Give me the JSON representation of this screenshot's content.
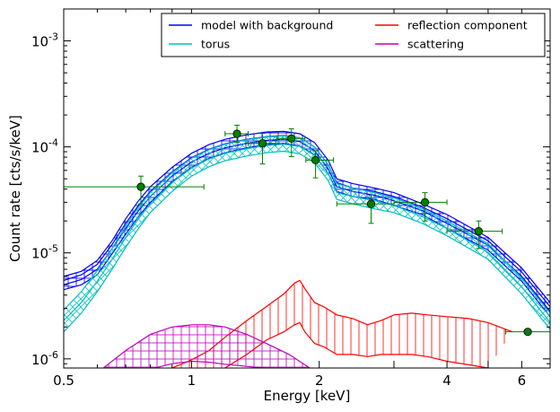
{
  "chart_data": {
    "type": "line",
    "title": "",
    "xlabel": "Energy [keV]",
    "ylabel": "Count rate [cts/s/keV]",
    "xscale": "log",
    "yscale": "log",
    "xlim": [
      0.5,
      7.0
    ],
    "ylim": [
      8.2e-07,
      0.002
    ],
    "xticks": [
      {
        "value": 0.5,
        "label": "0.5"
      },
      {
        "value": 1,
        "label": "1"
      },
      {
        "value": 2,
        "label": "2"
      },
      {
        "value": 4,
        "label": "4"
      },
      {
        "value": 6,
        "label": "6"
      }
    ],
    "yticks": [
      {
        "value": 1e-06,
        "mantissa": "10",
        "exponent": "-6"
      },
      {
        "value": 1e-05,
        "mantissa": "10",
        "exponent": "-5"
      },
      {
        "value": 0.0001,
        "mantissa": "10",
        "exponent": "-4"
      },
      {
        "value": 0.001,
        "mantissa": "10",
        "exponent": "-3"
      }
    ],
    "grid": false,
    "legend": {
      "placement": "top-right",
      "columns": 2,
      "entries": [
        {
          "name": "model with background",
          "color": "#0000ff"
        },
        {
          "name": "torus",
          "color": "#00bfbf"
        },
        {
          "name": "reflection component",
          "color": "#ff0000"
        },
        {
          "name": "scattering",
          "color": "#bf00bf"
        }
      ]
    },
    "data_points": {
      "color": "#008000",
      "points": [
        {
          "x": 0.76,
          "y": 4.2e-05,
          "xerr": [
            0.26,
            0.31
          ],
          "yerr": [
            1.3e-05,
            1.1e-05
          ]
        },
        {
          "x": 1.28,
          "y": 0.000133,
          "xerr": [
            0.08,
            0.08
          ],
          "yerr": [
            2.2e-05,
            2.7e-05
          ]
        },
        {
          "x": 1.47,
          "y": 0.000108,
          "xerr": [
            0.11,
            0.11
          ],
          "yerr": [
            3.9e-05,
            2.6e-05
          ]
        },
        {
          "x": 1.72,
          "y": 0.00012,
          "xerr": [
            0.13,
            0.13
          ],
          "yerr": [
            3.9e-05,
            2.8e-05
          ]
        },
        {
          "x": 1.96,
          "y": 7.5e-05,
          "xerr": [
            0.1,
            0.2
          ],
          "yerr": [
            2.4e-05,
            1.7e-05
          ]
        },
        {
          "x": 2.65,
          "y": 2.9e-05,
          "xerr": [
            0.45,
            0.35
          ],
          "yerr": [
            1e-05,
            6e-06
          ]
        },
        {
          "x": 3.55,
          "y": 3e-05,
          "xerr": [
            0.55,
            0.45
          ],
          "yerr": [
            1e-05,
            7e-06
          ]
        },
        {
          "x": 4.75,
          "y": 1.6e-05,
          "xerr": [
            0.75,
            0.65
          ],
          "yerr": [
            5e-06,
            4e-06
          ]
        },
        {
          "x": 6.2,
          "y": 1.8e-06,
          "xerr": [
            0.7,
            0.8
          ],
          "yerr": [
            0.0,
            0.0
          ]
        }
      ]
    },
    "series": [
      {
        "id": "model",
        "name": "model with background",
        "color": "#0000ff",
        "hatch": "cross",
        "lines": [
          {
            "x": [
              0.5,
              0.55,
              0.6,
              0.65,
              0.7,
              0.75,
              0.8,
              0.9,
              1.0,
              1.1,
              1.2,
              1.35,
              1.5,
              1.65,
              1.8,
              1.95,
              2.1,
              2.2,
              2.4,
              2.7,
              3.0,
              3.5,
              4.0,
              5.0,
              6.0,
              7.0
            ],
            "y": [
              6e-06,
              6.7e-06,
              8.5e-06,
              1.3e-05,
              2.1e-05,
              3.1e-05,
              4.2e-05,
              6.4e-05,
              8.7e-05,
              0.000105,
              0.000118,
              0.00013,
              0.000138,
              0.00014,
              0.000133,
              0.00011,
              7.5e-05,
              5e-05,
              4.5e-05,
              4.1e-05,
              3.7e-05,
              2.9e-05,
              2.3e-05,
              1.4e-05,
              7.2e-06,
              3.4e-06
            ]
          },
          {
            "x": [
              0.5,
              0.55,
              0.6,
              0.65,
              0.7,
              0.75,
              0.8,
              0.9,
              1.0,
              1.1,
              1.2,
              1.35,
              1.5,
              1.65,
              1.8,
              1.95,
              2.1,
              2.2,
              2.4,
              2.7,
              3.0,
              3.5,
              4.0,
              5.0,
              6.0,
              7.0
            ],
            "y": [
              5.5e-06,
              6.2e-06,
              7.8e-06,
              1.2e-05,
              1.9e-05,
              2.8e-05,
              3.8e-05,
              5.8e-05,
              7.9e-05,
              9.5e-05,
              0.000107,
              0.000118,
              0.000125,
              0.000128,
              0.000122,
              0.0001,
              6.8e-05,
              4.6e-05,
              4.1e-05,
              3.8e-05,
              3.4e-05,
              2.7e-05,
              2.1e-05,
              1.3e-05,
              6.6e-06,
              3.1e-06
            ]
          },
          {
            "x": [
              0.5,
              0.55,
              0.6,
              0.65,
              0.7,
              0.75,
              0.8,
              0.9,
              1.0,
              1.1,
              1.2,
              1.35,
              1.5,
              1.65,
              1.8,
              1.95,
              2.1,
              2.2,
              2.4,
              2.7,
              3.0,
              3.5,
              4.0,
              5.0,
              6.0,
              7.0
            ],
            "y": [
              5e-06,
              5.6e-06,
              7e-06,
              1.1e-05,
              1.7e-05,
              2.5e-05,
              3.4e-05,
              5.3e-05,
              7.2e-05,
              8.7e-05,
              9.8e-05,
              0.000108,
              0.000115,
              0.000118,
              0.000112,
              9.2e-05,
              6.2e-05,
              4.2e-05,
              3.8e-05,
              3.5e-05,
              3.1e-05,
              2.5e-05,
              1.9e-05,
              1.18e-05,
              6e-06,
              2.8e-06
            ]
          },
          {
            "x": [
              0.5,
              0.55,
              0.6,
              0.65,
              0.7,
              0.75,
              0.8,
              0.9,
              1.0,
              1.1,
              1.2,
              1.35,
              1.5,
              1.65,
              1.8,
              1.95,
              2.1,
              2.2,
              2.4,
              2.7,
              3.0,
              3.5,
              4.0,
              5.0,
              6.0,
              7.0
            ],
            "y": [
              4.5e-06,
              5e-06,
              6.2e-06,
              9.8e-06,
              1.5e-05,
              2.2e-05,
              3e-05,
              4.7e-05,
              6.4e-05,
              7.8e-05,
              8.8e-05,
              9.8e-05,
              0.000105,
              0.000108,
              0.000102,
              8.4e-05,
              5.6e-05,
              3.8e-05,
              3.4e-05,
              3.2e-05,
              2.8e-05,
              2.3e-05,
              1.7e-05,
              1.06e-05,
              5.4e-06,
              2.5e-06
            ]
          }
        ]
      },
      {
        "id": "torus",
        "name": "torus",
        "color": "#00bfbf",
        "hatch": "diagonal",
        "lines": [
          {
            "x": [
              0.5,
              0.55,
              0.6,
              0.65,
              0.7,
              0.75,
              0.8,
              0.9,
              1.0,
              1.1,
              1.2,
              1.35,
              1.5,
              1.65,
              1.8,
              1.95,
              2.1,
              2.2,
              2.4,
              2.7,
              3.0,
              3.5,
              4.0,
              5.0,
              6.0,
              7.0
            ],
            "y": [
              2.9e-06,
              4.3e-06,
              6.8e-06,
              1.1e-05,
              1.8e-05,
              2.7e-05,
              3.7e-05,
              5.7e-05,
              7.8e-05,
              9.4e-05,
              0.000106,
              0.000117,
              0.000124,
              0.000127,
              0.000122,
              0.0001,
              6.8e-05,
              4.5e-05,
              4.1e-05,
              3.7e-05,
              3.3e-05,
              2.6e-05,
              2e-05,
              1.22e-05,
              5.8e-06,
              2.7e-06
            ]
          },
          {
            "x": [
              0.5,
              0.55,
              0.6,
              0.65,
              0.7,
              0.75,
              0.8,
              0.9,
              1.0,
              1.1,
              1.2,
              1.35,
              1.5,
              1.65,
              1.8,
              1.95,
              2.1,
              2.2,
              2.4,
              2.7,
              3.0,
              3.5,
              4.0,
              5.0,
              6.0,
              7.0
            ],
            "y": [
              2.3e-06,
              3.4e-06,
              5.4e-06,
              8.7e-06,
              1.4e-05,
              2.1e-05,
              2.9e-05,
              4.6e-05,
              6.3e-05,
              7.7e-05,
              8.7e-05,
              9.6e-05,
              0.000103,
              0.000106,
              0.000101,
              8.3e-05,
              5.6e-05,
              3.7e-05,
              3.4e-05,
              3.1e-05,
              2.8e-05,
              2.2e-05,
              1.7e-05,
              1.01e-05,
              4.8e-06,
              2.2e-06
            ]
          },
          {
            "x": [
              0.5,
              0.55,
              0.6,
              0.65,
              0.7,
              0.75,
              0.8,
              0.9,
              1.0,
              1.1,
              1.2,
              1.35,
              1.5,
              1.65,
              1.8,
              1.95,
              2.1,
              2.2,
              2.4,
              2.7,
              3.0,
              3.5,
              4.0,
              5.0,
              6.0,
              7.0
            ],
            "y": [
              1.8e-06,
              2.7e-06,
              4.3e-06,
              7e-06,
              1.13e-05,
              1.7e-05,
              2.4e-05,
              3.8e-05,
              5.3e-05,
              6.5e-05,
              7.4e-05,
              8.2e-05,
              8.8e-05,
              9.1e-05,
              8.6e-05,
              7.1e-05,
              4.8e-05,
              3.2e-05,
              2.9e-05,
              2.6e-05,
              2.4e-05,
              1.9e-05,
              1.45e-05,
              8.7e-06,
              4.1e-06,
              1.9e-06
            ]
          }
        ]
      },
      {
        "id": "reflection",
        "name": "reflection component",
        "color": "#ff0000",
        "hatch": "vertical",
        "lines": [
          {
            "x": [
              0.9,
              1.0,
              1.1,
              1.2,
              1.35,
              1.5,
              1.65,
              1.75,
              1.8,
              1.85,
              1.95,
              2.05,
              2.2,
              2.4,
              2.6,
              2.8,
              3.0,
              3.3,
              3.6,
              4.0,
              4.5,
              5.0,
              5.5,
              5.7
            ],
            "y": [
              8.2e-07,
              9.8e-07,
              1.2e-06,
              1.6e-06,
              2.3e-06,
              3.1e-06,
              4.1e-06,
              5.2e-06,
              5.5e-06,
              4.6e-06,
              3.4e-06,
              3.1e-06,
              2.6e-06,
              2.4e-06,
              2.1e-06,
              2.3e-06,
              2.6e-06,
              2.7e-06,
              2.6e-06,
              2.5e-06,
              2.4e-06,
              2.2e-06,
              1.9e-06,
              1.8e-06
            ]
          },
          {
            "x": [
              1.2,
              1.35,
              1.5,
              1.65,
              1.75,
              1.8,
              1.85,
              1.95,
              2.05,
              2.2,
              2.4,
              2.6,
              2.8,
              3.0,
              3.3,
              3.6,
              4.0,
              4.5,
              5.0
            ],
            "y": [
              8.2e-07,
              1.1e-06,
              1.5e-06,
              1.8e-06,
              2.1e-06,
              2.2e-06,
              1.8e-06,
              1.4e-06,
              1.3e-06,
              1.1e-06,
              1.1e-06,
              1.05e-06,
              1.1e-06,
              1.1e-06,
              1.1e-06,
              1.05e-06,
              9.5e-07,
              8.8e-07,
              8.2e-07
            ]
          }
        ]
      },
      {
        "id": "scattering",
        "name": "scattering",
        "color": "#bf00bf",
        "hatch": "cross",
        "lines": [
          {
            "x": [
              0.62,
              0.7,
              0.8,
              0.9,
              1.0,
              1.1,
              1.2,
              1.35,
              1.5,
              1.7,
              1.9
            ],
            "y": [
              8.2e-07,
              1.2e-06,
              1.7e-06,
              2e-06,
              2.1e-06,
              2.1e-06,
              2e-06,
              1.7e-06,
              1.4e-06,
              1.1e-06,
              8.2e-07
            ]
          },
          {
            "x": [
              0.82,
              0.9,
              1.0,
              1.1,
              1.2,
              1.35,
              1.5
            ],
            "y": [
              8.2e-07,
              9e-07,
              9.5e-07,
              9.3e-07,
              8.9e-07,
              8.5e-07,
              8.2e-07
            ]
          }
        ]
      }
    ]
  }
}
